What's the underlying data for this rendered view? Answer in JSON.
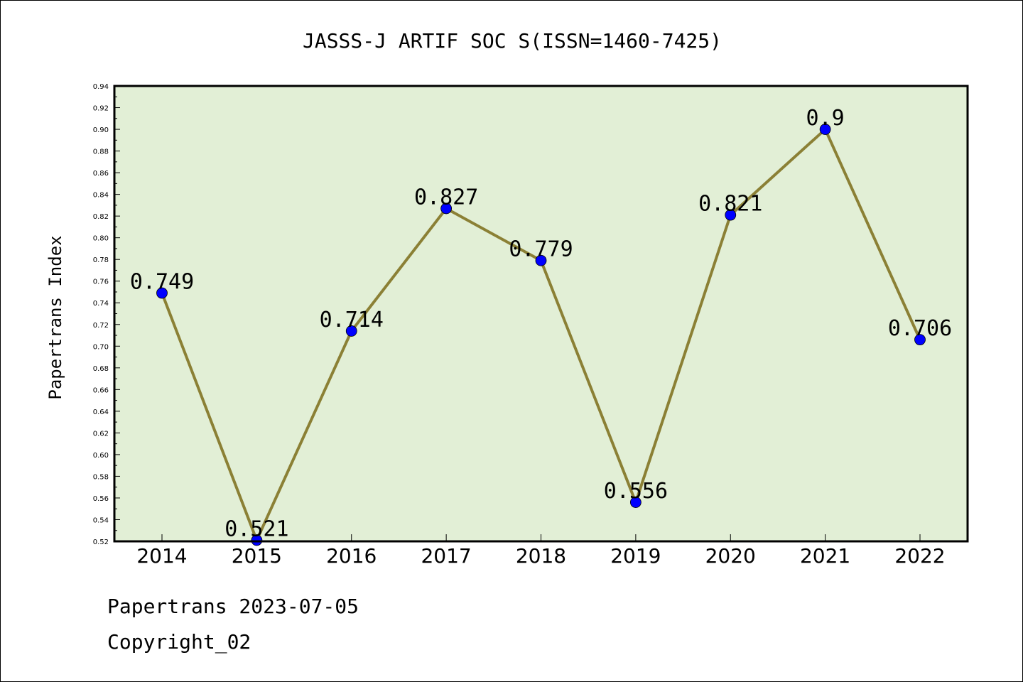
{
  "chart_data": {
    "type": "line",
    "title": "JASSS-J ARTIF SOC S(ISSN=1460-7425)",
    "xlabel": "",
    "ylabel": "Papertrans Index",
    "categories": [
      "2014",
      "2015",
      "2016",
      "2017",
      "2018",
      "2019",
      "2020",
      "2021",
      "2022"
    ],
    "series": [
      {
        "values": [
          0.749,
          0.521,
          0.714,
          0.827,
          0.779,
          0.556,
          0.821,
          0.9,
          0.706
        ],
        "labels": [
          "0.749",
          "0.521",
          "0.714",
          "0.827",
          "0.779",
          "0.556",
          "0.821",
          "0.9",
          "0.706"
        ]
      }
    ],
    "ylim": [
      0.52,
      0.94
    ],
    "yticks": [
      "0.52",
      "0.54",
      "0.56",
      "0.58",
      "0.60",
      "0.62",
      "0.64",
      "0.66",
      "0.68",
      "0.70",
      "0.72",
      "0.74",
      "0.76",
      "0.78",
      "0.80",
      "0.82",
      "0.84",
      "0.86",
      "0.88",
      "0.90",
      "0.92",
      "0.94"
    ],
    "grid": false,
    "colors": {
      "plot_background": "#e2efd6",
      "line": "#8b8035",
      "marker": "#0000ff"
    }
  },
  "footer": {
    "line1": "Papertrans 2023-07-05",
    "line2": "Copyright_02"
  }
}
